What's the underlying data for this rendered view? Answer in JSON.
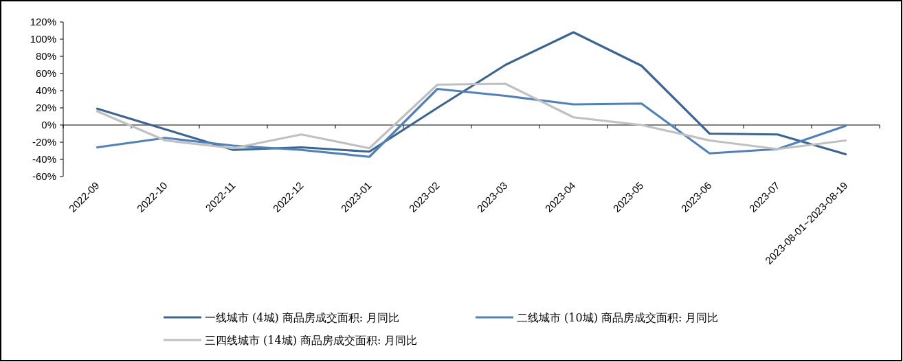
{
  "chart_data": {
    "type": "line",
    "categories": [
      "2022-09",
      "2022-10",
      "2022-11",
      "2022-12",
      "2023-01",
      "2023-02",
      "2023-03",
      "2023-04",
      "2023-05",
      "2023-06",
      "2023-07",
      "2023-08-01~2023-08-19"
    ],
    "ylim": [
      -60,
      120
    ],
    "yticks": [
      {
        "value": -60,
        "label": "-60%"
      },
      {
        "value": -40,
        "label": "-40%"
      },
      {
        "value": -20,
        "label": "-20%"
      },
      {
        "value": 0,
        "label": "0%"
      },
      {
        "value": 20,
        "label": "20%"
      },
      {
        "value": 40,
        "label": "40%"
      },
      {
        "value": 60,
        "label": "60%"
      },
      {
        "value": 80,
        "label": "80%"
      },
      {
        "value": 100,
        "label": "100%"
      },
      {
        "value": 120,
        "label": "120%"
      }
    ],
    "legend": "bottom",
    "marker": "none",
    "line_style": "solid",
    "series": [
      {
        "name": "一线城市 (4城) 商品房成交面积: 月同比",
        "color": "#3b6496",
        "values": [
          19,
          -5,
          -29,
          -26,
          -31,
          20,
          70,
          108,
          69,
          -10,
          -11,
          -34
        ]
      },
      {
        "name": "二线城市 (10城) 商品房成交面积: 月同比",
        "color": "#4f81bd",
        "values": [
          -26,
          -15,
          -24,
          -29,
          -37,
          42,
          34,
          24,
          25,
          -33,
          -28,
          -1
        ]
      },
      {
        "name": "三四线城市 (14城) 商品房成交面积: 月同比",
        "color": "#c0c0c0",
        "values": [
          16,
          -18,
          -27,
          -11,
          -27,
          47,
          48,
          9,
          0,
          -18,
          -28,
          -18
        ]
      }
    ]
  }
}
